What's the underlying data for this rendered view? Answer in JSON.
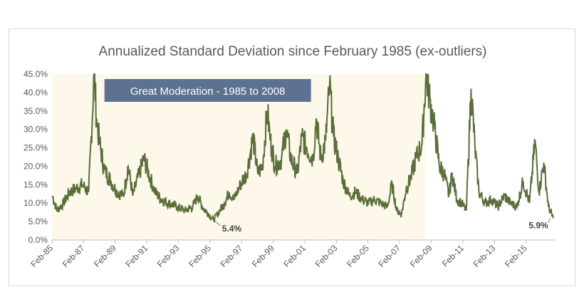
{
  "chart_data": {
    "type": "line",
    "title": "Annualized Standard Deviation since February 1985 (ex-outliers)",
    "xlabel": "",
    "ylabel": "",
    "ylim": [
      0,
      45
    ],
    "x_range": [
      "Feb-85",
      "Oct-16"
    ],
    "y_tick_labels": [
      "0.0%",
      "5.0%",
      "10.0%",
      "15.0%",
      "20.0%",
      "25.0%",
      "30.0%",
      "35.0%",
      "40.0%",
      "45.0%"
    ],
    "x_tick_labels": [
      "Feb-85",
      "Feb-87",
      "Feb-89",
      "Feb-91",
      "Feb-93",
      "Feb-95",
      "Feb-97",
      "Feb-99",
      "Feb-01",
      "Feb-03",
      "Feb-05",
      "Feb-07",
      "Feb-09",
      "Feb-11",
      "Feb-13",
      "Feb-15"
    ],
    "grid": false,
    "line_color": "#5a6e3a",
    "shaded_region": {
      "label": "Great Moderation - 1985 to 2008",
      "start_year": 1985.08,
      "end_year": 2008.7,
      "fill": "#fdf8ea",
      "label_box_color": "#5d7190"
    },
    "annotations": [
      {
        "label": "5.4%",
        "year": 1995.3,
        "value": 5.4
      },
      {
        "label": "5.9%",
        "year": 2016.6,
        "value": 5.9
      }
    ],
    "series": [
      {
        "points": [
          [
            1985.1,
            12
          ],
          [
            1985.4,
            8
          ],
          [
            1985.8,
            10
          ],
          [
            1986.2,
            13
          ],
          [
            1986.6,
            14
          ],
          [
            1987.0,
            15
          ],
          [
            1987.4,
            13
          ],
          [
            1987.75,
            45
          ],
          [
            1987.9,
            33
          ],
          [
            1988.1,
            26
          ],
          [
            1988.4,
            19
          ],
          [
            1988.8,
            16
          ],
          [
            1989.2,
            13
          ],
          [
            1989.6,
            12
          ],
          [
            1989.9,
            20
          ],
          [
            1990.2,
            12
          ],
          [
            1990.6,
            18
          ],
          [
            1990.9,
            22
          ],
          [
            1991.2,
            18
          ],
          [
            1991.6,
            13
          ],
          [
            1992.0,
            11
          ],
          [
            1992.5,
            10
          ],
          [
            1993.0,
            9
          ],
          [
            1993.5,
            8
          ],
          [
            1994.0,
            9
          ],
          [
            1994.3,
            12
          ],
          [
            1994.6,
            9
          ],
          [
            1995.0,
            7
          ],
          [
            1995.3,
            5.4
          ],
          [
            1995.7,
            8
          ],
          [
            1996.0,
            10
          ],
          [
            1996.3,
            13
          ],
          [
            1996.6,
            11
          ],
          [
            1997.0,
            15
          ],
          [
            1997.4,
            18
          ],
          [
            1997.8,
            28
          ],
          [
            1998.1,
            18
          ],
          [
            1998.4,
            20
          ],
          [
            1998.7,
            35
          ],
          [
            1998.9,
            27
          ],
          [
            1999.2,
            20
          ],
          [
            1999.6,
            22
          ],
          [
            1999.9,
            30
          ],
          [
            2000.2,
            22
          ],
          [
            2000.6,
            18
          ],
          [
            2000.9,
            28
          ],
          [
            2001.2,
            25
          ],
          [
            2001.6,
            22
          ],
          [
            2001.8,
            33
          ],
          [
            2002.1,
            22
          ],
          [
            2002.4,
            27
          ],
          [
            2002.65,
            42
          ],
          [
            2002.9,
            28
          ],
          [
            2003.2,
            22
          ],
          [
            2003.5,
            16
          ],
          [
            2003.9,
            12
          ],
          [
            2004.3,
            13
          ],
          [
            2004.7,
            11
          ],
          [
            2005.1,
            10
          ],
          [
            2005.5,
            11
          ],
          [
            2005.9,
            10
          ],
          [
            2006.3,
            9
          ],
          [
            2006.6,
            15
          ],
          [
            2006.9,
            8
          ],
          [
            2007.2,
            7
          ],
          [
            2007.5,
            14
          ],
          [
            2007.8,
            17
          ],
          [
            2008.1,
            22
          ],
          [
            2008.5,
            26
          ],
          [
            2008.75,
            45
          ],
          [
            2009.0,
            38
          ],
          [
            2009.3,
            30
          ],
          [
            2009.6,
            20
          ],
          [
            2009.9,
            18
          ],
          [
            2010.2,
            12
          ],
          [
            2010.4,
            18
          ],
          [
            2010.7,
            11
          ],
          [
            2011.0,
            10
          ],
          [
            2011.3,
            8
          ],
          [
            2011.6,
            41
          ],
          [
            2011.85,
            25
          ],
          [
            2012.1,
            13
          ],
          [
            2012.5,
            10
          ],
          [
            2012.9,
            11
          ],
          [
            2013.3,
            9
          ],
          [
            2013.7,
            12
          ],
          [
            2014.1,
            10
          ],
          [
            2014.5,
            9
          ],
          [
            2014.9,
            16
          ],
          [
            2015.3,
            10
          ],
          [
            2015.65,
            27
          ],
          [
            2015.9,
            13
          ],
          [
            2016.2,
            21
          ],
          [
            2016.5,
            9
          ],
          [
            2016.8,
            5.9
          ]
        ]
      }
    ]
  }
}
